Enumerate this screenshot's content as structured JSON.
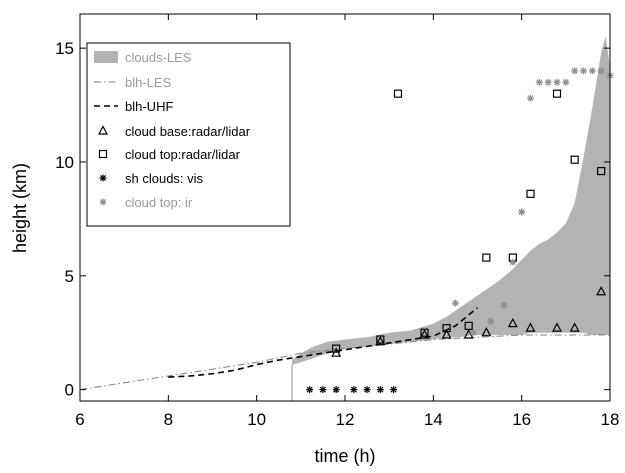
{
  "chart_data": {
    "type": "area",
    "xlabel": "time (h)",
    "ylabel": "height (km)",
    "xlim": [
      6,
      18
    ],
    "ylim": [
      -0.5,
      16.5
    ],
    "xticks": [
      6,
      8,
      10,
      12,
      14,
      16,
      18
    ],
    "yticks": [
      0,
      5,
      10,
      15
    ],
    "grid": false,
    "legend_position": "top-left",
    "colors": {
      "clouds_les": "#b3b3b3",
      "cloud_top_ir": "#8c8c8c",
      "black": "#000000",
      "gray_text": "#9a9a9a"
    },
    "series": [
      {
        "name": "clouds-LES",
        "kind": "band",
        "x": [
          10.8,
          11.0,
          11.3,
          11.6,
          12.0,
          12.5,
          13.0,
          13.5,
          14.0,
          14.3,
          14.6,
          14.9,
          15.2,
          15.5,
          15.8,
          16.0,
          16.2,
          16.4,
          16.6,
          16.8,
          17.0,
          17.2,
          17.4,
          17.6,
          17.8,
          17.9,
          18.0
        ],
        "lower": [
          1.1,
          1.2,
          1.4,
          1.6,
          1.8,
          1.9,
          2.0,
          2.1,
          2.2,
          2.3,
          2.3,
          2.4,
          2.4,
          2.4,
          2.4,
          2.4,
          2.5,
          2.5,
          2.5,
          2.5,
          2.5,
          2.5,
          2.5,
          2.4,
          2.4,
          2.4,
          2.4
        ],
        "upper": [
          1.3,
          1.6,
          1.9,
          2.1,
          2.2,
          2.3,
          2.5,
          2.6,
          2.9,
          3.2,
          3.6,
          4.0,
          4.4,
          4.8,
          5.3,
          5.7,
          6.1,
          6.4,
          6.6,
          6.9,
          7.3,
          8.2,
          10.2,
          12.4,
          14.8,
          15.5,
          14.2
        ]
      },
      {
        "name": "blh-LES",
        "kind": "line",
        "style": "dashdot",
        "x": [
          6.0,
          7.0,
          8.0,
          9.0,
          10.0,
          10.5,
          11.0,
          12.0,
          13.0,
          14.0,
          15.0,
          16.0,
          17.0,
          18.0
        ],
        "y": [
          0.0,
          0.3,
          0.6,
          0.9,
          1.2,
          1.4,
          1.6,
          1.8,
          2.0,
          2.2,
          2.3,
          2.4,
          2.4,
          2.4
        ]
      },
      {
        "name": "blh-UHF",
        "kind": "line",
        "style": "dashed",
        "x": [
          8.0,
          8.5,
          9.0,
          9.5,
          10.0,
          10.5,
          11.0,
          11.5,
          12.0,
          12.5,
          13.0,
          13.5,
          14.0,
          14.5,
          15.0
        ],
        "y": [
          0.55,
          0.6,
          0.7,
          0.85,
          1.1,
          1.3,
          1.45,
          1.6,
          1.75,
          1.9,
          2.05,
          2.2,
          2.35,
          2.8,
          3.6
        ]
      },
      {
        "name": "cloud base:radar/lidar",
        "kind": "scatter",
        "marker": "triangle",
        "x": [
          11.8,
          12.8,
          13.8,
          14.3,
          14.8,
          15.2,
          15.8,
          16.2,
          16.8,
          17.2,
          17.8
        ],
        "y": [
          1.6,
          2.1,
          2.4,
          2.4,
          2.4,
          2.5,
          2.9,
          2.7,
          2.7,
          2.7,
          4.3
        ]
      },
      {
        "name": "cloud top:radar/lidar",
        "kind": "scatter",
        "marker": "square",
        "x": [
          11.8,
          12.8,
          13.2,
          13.8,
          14.3,
          14.8,
          15.2,
          15.8,
          16.2,
          16.8,
          17.2,
          17.8
        ],
        "y": [
          1.8,
          2.2,
          13.0,
          2.5,
          2.7,
          2.8,
          5.8,
          5.8,
          8.6,
          13.0,
          10.1,
          9.6
        ]
      },
      {
        "name": "sh clouds: vis",
        "kind": "scatter",
        "marker": "star",
        "x": [
          11.2,
          11.5,
          11.8,
          12.2,
          12.5,
          12.8,
          13.1
        ],
        "y": [
          0.0,
          0.0,
          0.0,
          0.0,
          0.0,
          0.0,
          0.0
        ]
      },
      {
        "name": "cloud top: ir",
        "kind": "scatter",
        "marker": "star",
        "x": [
          14.5,
          14.9,
          15.3,
          15.6,
          15.8,
          16.0,
          16.2,
          16.4,
          16.6,
          16.8,
          17.0,
          17.2,
          17.4,
          17.6,
          17.8,
          18.0
        ],
        "y": [
          3.8,
          2.5,
          3.0,
          3.7,
          5.6,
          7.8,
          12.8,
          13.5,
          13.5,
          13.5,
          13.5,
          14.0,
          14.0,
          14.0,
          14.0,
          13.8
        ]
      }
    ]
  }
}
